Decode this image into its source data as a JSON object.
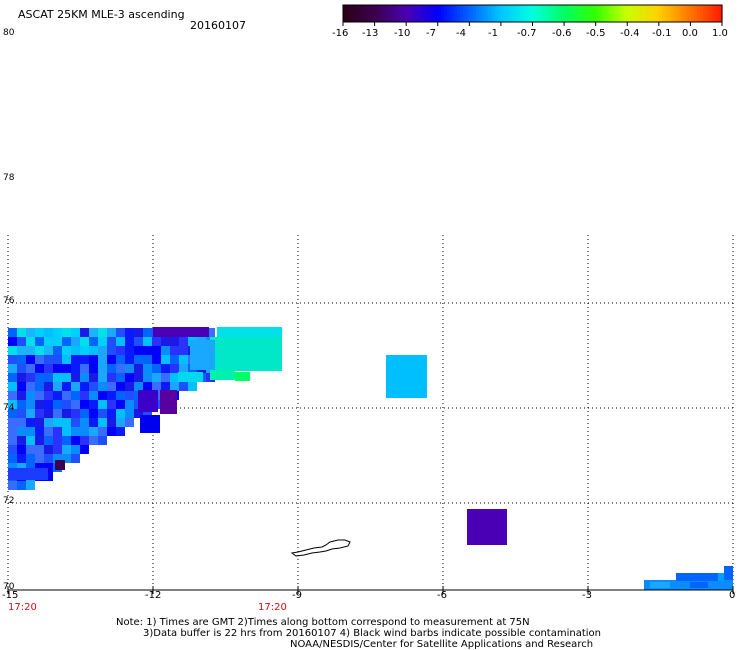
{
  "header": {
    "title": "ASCAT 25KM MLE-3 ascending",
    "date": "20160107"
  },
  "colorbar": {
    "labels": [
      "-16",
      "-13",
      "-10",
      "-7",
      "-4",
      "-1",
      "-0.7",
      "-0.6",
      "-0.5",
      "-0.4",
      "-0.1",
      "0.0",
      "1.0"
    ],
    "colors": [
      "#2a0018",
      "#3c0050",
      "#4a00b4",
      "#0000ff",
      "#0064ff",
      "#00c8ff",
      "#00ffe0",
      "#00ff64",
      "#32ff00",
      "#c8ff00",
      "#ffd200",
      "#ff7800",
      "#ff1e00"
    ]
  },
  "map": {
    "lon_labels": [
      "-15",
      "-12",
      "-9",
      "-6",
      "-3",
      "0"
    ],
    "lat_labels": [
      "80",
      "78",
      "76",
      "74",
      "72",
      "70"
    ],
    "time_labels": [
      "17:20",
      "17:20"
    ],
    "cells_legend_note": "swath colored by MLE value"
  },
  "notes": {
    "line1": "Note: 1) Times are GMT 2)Times along bottom correspond to measurement at 75N",
    "line2": "3)Data buffer is 22 hrs from 20160107 4) Black wind barbs indicate possible contamination",
    "line3": "NOAA/NESDIS/Center for Satellite Applications and Research"
  }
}
